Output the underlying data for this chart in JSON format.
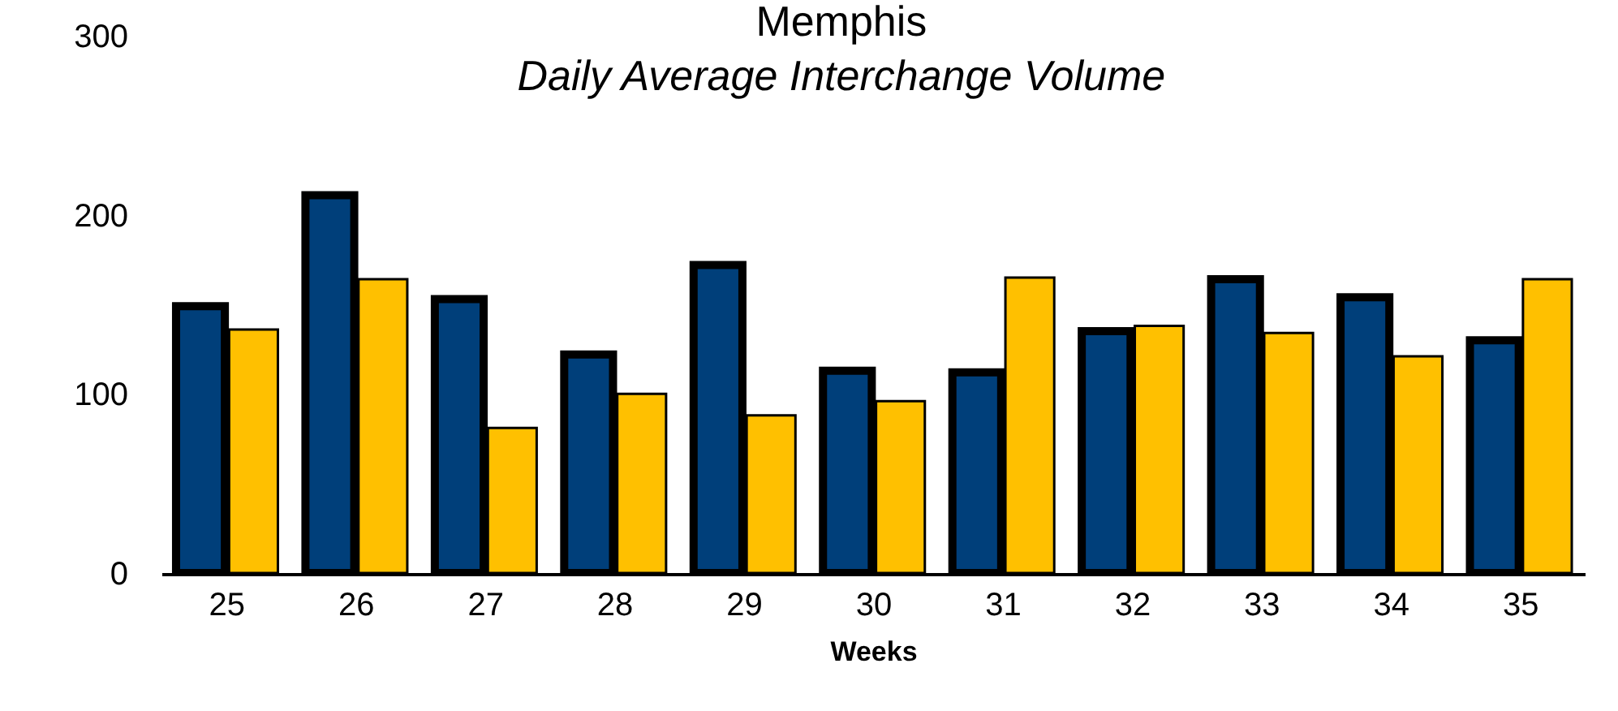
{
  "chart_data": {
    "type": "bar",
    "title": "Memphis",
    "subtitle": "Daily Average Interchange Volume",
    "xlabel": "Weeks",
    "categories": [
      "25",
      "26",
      "27",
      "28",
      "29",
      "30",
      "31",
      "32",
      "33",
      "34",
      "35"
    ],
    "series": [
      {
        "color": "#003f7a",
        "values": [
          149,
          211,
          153,
          122,
          172,
          113,
          112,
          135,
          164,
          154,
          130
        ]
      },
      {
        "color": "#ffc000",
        "values": [
          136,
          164,
          81,
          100,
          88,
          96,
          165,
          138,
          134,
          121,
          164
        ]
      }
    ],
    "ylim": [
      0,
      300
    ],
    "yticks": [
      0,
      100,
      200,
      300
    ],
    "grid": false,
    "legend": false
  }
}
